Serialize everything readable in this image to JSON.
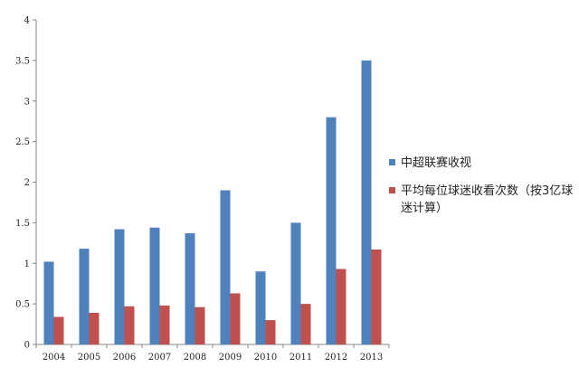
{
  "chart_data": {
    "type": "bar",
    "categories": [
      "2004",
      "2005",
      "2006",
      "2007",
      "2008",
      "2009",
      "2010",
      "2011",
      "2012",
      "2013"
    ],
    "series": [
      {
        "name": "中超联赛收视",
        "color": "#4F81BD",
        "values": [
          1.02,
          1.18,
          1.42,
          1.44,
          1.37,
          1.9,
          0.9,
          1.5,
          2.8,
          3.5
        ]
      },
      {
        "name": "平均每位球迷收看次数（按3亿球迷计算）",
        "color": "#C0504D",
        "values": [
          0.34,
          0.39,
          0.47,
          0.48,
          0.46,
          0.63,
          0.3,
          0.5,
          0.93,
          1.17
        ]
      }
    ],
    "yticks": [
      "0",
      "0.5",
      "1",
      "1.5",
      "2",
      "2.5",
      "3",
      "3.5",
      "4"
    ],
    "ylim": [
      0,
      4
    ],
    "title": "",
    "xlabel": "",
    "ylabel": "",
    "grid": false,
    "legend_position": "right"
  }
}
